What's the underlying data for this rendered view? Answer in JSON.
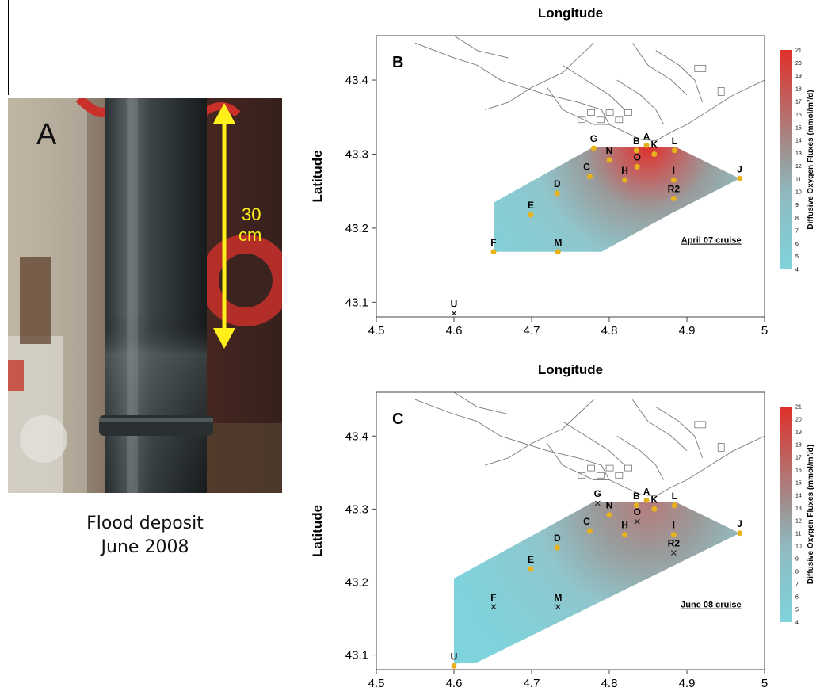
{
  "panel_a": {
    "letter": "A",
    "scale_value": "30",
    "scale_unit": "cm",
    "caption_line1": "Flood deposit",
    "caption_line2": "June 2008"
  },
  "colorbar": {
    "label": "Diffusive Oxygen Fluxes (mmol/m²/d)",
    "ticks": [
      "4",
      "5",
      "6",
      "7",
      "8",
      "9",
      "10",
      "11",
      "12",
      "13",
      "14",
      "15",
      "16",
      "17",
      "18",
      "19",
      "20",
      "21"
    ]
  },
  "chart_data": [
    {
      "type": "heatmap",
      "panel": "B",
      "title": "Longitude",
      "xlabel": "",
      "ylabel": "Latitude",
      "xlim": [
        4.5,
        5.0
      ],
      "ylim": [
        43.08,
        43.46
      ],
      "x_ticks": [
        "4.5",
        "4.6",
        "4.7",
        "4.8",
        "4.9",
        "5"
      ],
      "y_ticks": [
        "43.1",
        "43.2",
        "43.3",
        "43.4"
      ],
      "annotation": "April 07 cruise",
      "colorbar_range": [
        4,
        21
      ],
      "stations": [
        {
          "name": "G",
          "lon": 4.78,
          "lat": 43.308,
          "sampled": true
        },
        {
          "name": "N",
          "lon": 4.8,
          "lat": 43.292,
          "sampled": true
        },
        {
          "name": "B",
          "lon": 4.835,
          "lat": 43.305,
          "sampled": true
        },
        {
          "name": "A",
          "lon": 4.848,
          "lat": 43.312,
          "sampled": true
        },
        {
          "name": "K",
          "lon": 4.858,
          "lat": 43.3,
          "sampled": true
        },
        {
          "name": "L",
          "lon": 4.884,
          "lat": 43.305,
          "sampled": true
        },
        {
          "name": "O",
          "lon": 4.836,
          "lat": 43.283,
          "sampled": true
        },
        {
          "name": "C",
          "lon": 4.775,
          "lat": 43.27,
          "sampled": true
        },
        {
          "name": "H",
          "lon": 4.82,
          "lat": 43.265,
          "sampled": true
        },
        {
          "name": "I",
          "lon": 4.883,
          "lat": 43.265,
          "sampled": true
        },
        {
          "name": "J",
          "lon": 4.968,
          "lat": 43.267,
          "sampled": true
        },
        {
          "name": "R2",
          "lon": 4.883,
          "lat": 43.24,
          "sampled": true
        },
        {
          "name": "D",
          "lon": 4.733,
          "lat": 43.247,
          "sampled": true
        },
        {
          "name": "E",
          "lon": 4.699,
          "lat": 43.218,
          "sampled": true
        },
        {
          "name": "F",
          "lon": 4.651,
          "lat": 43.168,
          "sampled": true
        },
        {
          "name": "M",
          "lon": 4.734,
          "lat": 43.168,
          "sampled": true
        },
        {
          "name": "U",
          "lon": 4.6,
          "lat": 43.085,
          "sampled": false
        }
      ]
    },
    {
      "type": "heatmap",
      "panel": "C",
      "title": "Longitude",
      "xlabel": "",
      "ylabel": "Latitude",
      "xlim": [
        4.5,
        5.0
      ],
      "ylim": [
        43.08,
        43.46
      ],
      "x_ticks": [
        "4.5",
        "4.6",
        "4.7",
        "4.8",
        "4.9",
        "5"
      ],
      "y_ticks": [
        "43.1",
        "43.2",
        "43.3",
        "43.4"
      ],
      "annotation": "June 08 cruise",
      "colorbar_range": [
        4,
        21
      ],
      "stations": [
        {
          "name": "G",
          "lon": 4.785,
          "lat": 43.308,
          "sampled": false
        },
        {
          "name": "N",
          "lon": 4.8,
          "lat": 43.292,
          "sampled": true
        },
        {
          "name": "B",
          "lon": 4.835,
          "lat": 43.305,
          "sampled": true
        },
        {
          "name": "A",
          "lon": 4.848,
          "lat": 43.312,
          "sampled": true
        },
        {
          "name": "K",
          "lon": 4.858,
          "lat": 43.3,
          "sampled": true
        },
        {
          "name": "L",
          "lon": 4.884,
          "lat": 43.305,
          "sampled": true
        },
        {
          "name": "O",
          "lon": 4.836,
          "lat": 43.283,
          "sampled": false
        },
        {
          "name": "C",
          "lon": 4.775,
          "lat": 43.27,
          "sampled": true
        },
        {
          "name": "H",
          "lon": 4.82,
          "lat": 43.265,
          "sampled": true
        },
        {
          "name": "I",
          "lon": 4.883,
          "lat": 43.265,
          "sampled": true
        },
        {
          "name": "J",
          "lon": 4.968,
          "lat": 43.267,
          "sampled": true
        },
        {
          "name": "R2",
          "lon": 4.883,
          "lat": 43.24,
          "sampled": false
        },
        {
          "name": "D",
          "lon": 4.733,
          "lat": 43.247,
          "sampled": true
        },
        {
          "name": "E",
          "lon": 4.699,
          "lat": 43.218,
          "sampled": true
        },
        {
          "name": "F",
          "lon": 4.651,
          "lat": 43.166,
          "sampled": false
        },
        {
          "name": "M",
          "lon": 4.734,
          "lat": 43.166,
          "sampled": false
        },
        {
          "name": "U",
          "lon": 4.6,
          "lat": 43.085,
          "sampled": true
        }
      ]
    }
  ],
  "colors": {
    "sampled_marker": "#e8b21c",
    "flux_low": "#7fd3dc",
    "flux_mid": "#9a9a9a",
    "flux_high": "#e0302a"
  }
}
